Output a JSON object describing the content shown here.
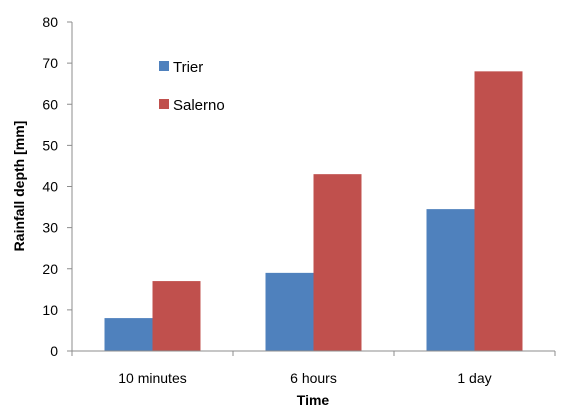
{
  "chart_data": {
    "type": "bar",
    "title": "",
    "xlabel": "Time",
    "ylabel": "Rainfall depth [mm]",
    "ylim": [
      0,
      80
    ],
    "yticks": [
      0,
      10,
      20,
      30,
      40,
      50,
      60,
      70,
      80
    ],
    "grid": false,
    "legend_position": "top-left",
    "categories": [
      "10 minutes",
      "6 hours",
      "1 day"
    ],
    "series": [
      {
        "name": "Trier",
        "color": "#4f81bd",
        "values": [
          8,
          19,
          34.5
        ]
      },
      {
        "name": "Salerno",
        "color": "#c0504d",
        "values": [
          17,
          43,
          68
        ]
      }
    ]
  }
}
